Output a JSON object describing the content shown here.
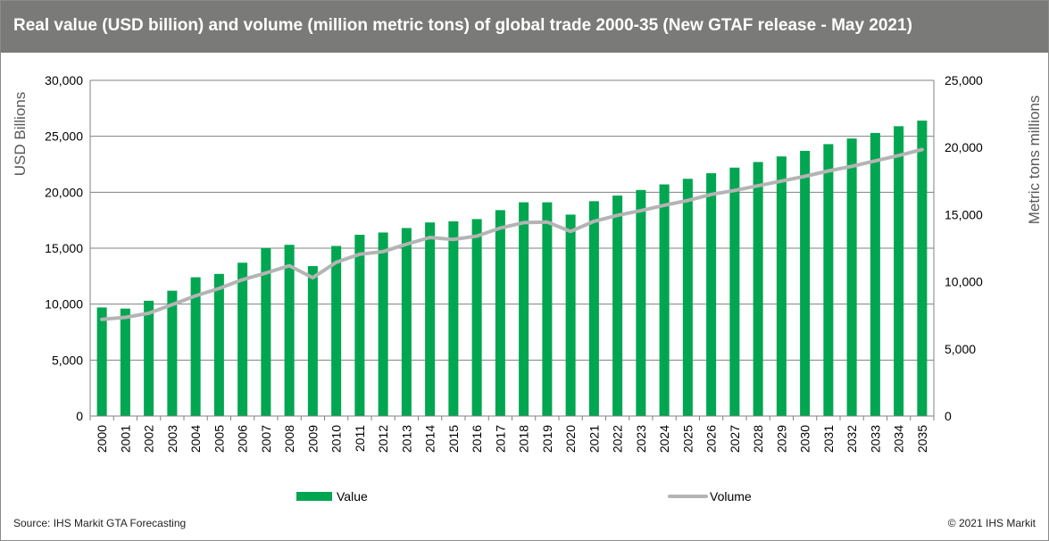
{
  "header": {
    "title": "Real value (USD billion) and volume (million metric tons) of global trade 2000-35 (New GTAF release - May 2021)"
  },
  "footer": {
    "source": "Source: IHS Markit GTA Forecasting",
    "copyright": "© 2021 IHS Markit"
  },
  "colors": {
    "title_bar": "#7a7a78",
    "bar": "#00a650",
    "line": "#b4b4b4",
    "grid": "#808080"
  },
  "chart_data": {
    "type": "bar+line",
    "categories": [
      "2000",
      "2001",
      "2002",
      "2003",
      "2004",
      "2005",
      "2006",
      "2007",
      "2008",
      "2009",
      "2010",
      "2011",
      "2012",
      "2013",
      "2014",
      "2015",
      "2016",
      "2017",
      "2018",
      "2019",
      "2020",
      "2021",
      "2022",
      "2023",
      "2024",
      "2025",
      "2026",
      "2027",
      "2028",
      "2029",
      "2030",
      "2031",
      "2032",
      "2033",
      "2034",
      "2035"
    ],
    "series": [
      {
        "name": "Value",
        "type": "bar",
        "axis": "left",
        "values": [
          9700,
          9600,
          10300,
          11200,
          12400,
          12700,
          13700,
          15000,
          15300,
          13400,
          15200,
          16200,
          16400,
          16800,
          17300,
          17400,
          17600,
          18400,
          19100,
          19100,
          18000,
          19200,
          19700,
          20200,
          20700,
          21200,
          21700,
          22200,
          22700,
          23200,
          23700,
          24300,
          24800,
          25300,
          25900,
          26400
        ]
      },
      {
        "name": "Volume",
        "type": "line",
        "axis": "right",
        "values": [
          7200,
          7350,
          7650,
          8300,
          8950,
          9500,
          10150,
          10650,
          11200,
          10300,
          11450,
          12050,
          12250,
          12800,
          13300,
          13150,
          13400,
          14000,
          14400,
          14450,
          13750,
          14500,
          14950,
          15300,
          15700,
          16050,
          16500,
          16800,
          17150,
          17500,
          17850,
          18250,
          18600,
          19000,
          19400,
          19850
        ]
      }
    ],
    "ylabel_left": "USD Billions",
    "ylabel_right": "Metric tons millions",
    "ylim_left": [
      0,
      30000
    ],
    "ylim_right": [
      0,
      25000
    ],
    "yticks_left": [
      "0",
      "5,000",
      "10,000",
      "15,000",
      "20,000",
      "25,000",
      "30,000"
    ],
    "yticks_right": [
      "0",
      "5,000",
      "10,000",
      "15,000",
      "20,000",
      "25,000"
    ],
    "grid": true,
    "legend": [
      "Value",
      "Volume"
    ],
    "legend_position": "bottom"
  }
}
